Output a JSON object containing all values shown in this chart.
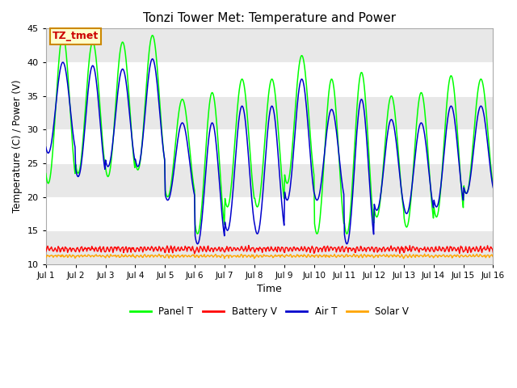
{
  "title": "Tonzi Tower Met: Temperature and Power",
  "xlabel": "Time",
  "ylabel": "Temperature (C) / Power (V)",
  "annotation": "TZ_tmet",
  "annotation_bg": "#FFFFCC",
  "annotation_border": "#CC8800",
  "annotation_text_color": "#CC0000",
  "ylim": [
    10,
    45
  ],
  "yticks": [
    10,
    15,
    20,
    25,
    30,
    35,
    40,
    45
  ],
  "xtick_labels": [
    "Jul 1",
    "Jul 2",
    "Jul 3",
    "Jul 4",
    "Jul 5",
    "Jul 6",
    "Jul 7",
    "Jul 8",
    "Jul 9",
    "Jul 10",
    "Jul 11",
    "Jul 12",
    "Jul 13",
    "Jul 14",
    "Jul 15",
    "Jul 16"
  ],
  "colors": {
    "panel_t": "#00FF00",
    "battery_v": "#FF0000",
    "air_t": "#0000CC",
    "solar_v": "#FFA500"
  },
  "legend_labels": [
    "Panel T",
    "Battery V",
    "Air T",
    "Solar V"
  ],
  "background_color": "#FFFFFF",
  "plot_bg_light": "#FFFFFF",
  "plot_bg_dark": "#E8E8E8",
  "title_fontsize": 11,
  "panel_peaks": [
    44,
    43,
    43,
    44,
    34.5,
    35.5,
    37.5,
    37.5,
    41,
    37.5,
    38.5,
    35,
    35.5,
    38,
    37.5
  ],
  "panel_mins": [
    22,
    23.5,
    23,
    24,
    20,
    14.5,
    18.5,
    18.5,
    22,
    14.5,
    14.5,
    17,
    15.5,
    17,
    20.5
  ],
  "air_peaks": [
    40,
    39.5,
    39,
    40.5,
    31,
    31,
    33.5,
    33.5,
    37.5,
    33,
    34.5,
    31.5,
    31,
    33.5,
    33.5
  ],
  "air_mins": [
    26.5,
    23,
    24.5,
    24.5,
    19.5,
    13,
    15,
    14.5,
    19.5,
    19.5,
    13,
    18,
    17.5,
    18.5,
    20.5
  ],
  "batt_mean": 11.8,
  "batt_amp": 0.7,
  "solar_mean": 11.0,
  "solar_amp": 0.35
}
